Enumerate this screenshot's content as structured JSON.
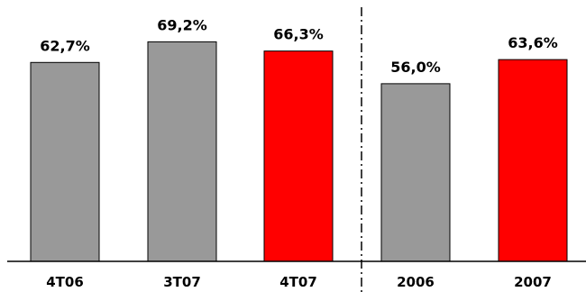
{
  "chart_data": {
    "type": "bar",
    "title": "",
    "xlabel": "",
    "ylabel": "",
    "ylim": [
      0,
      70
    ],
    "grid": false,
    "legend": "none",
    "unit": "%",
    "categories": [
      "4T06",
      "3T07",
      "4T07",
      "2006",
      "2007"
    ],
    "values": [
      62.7,
      69.2,
      66.3,
      56.0,
      63.6
    ],
    "value_labels": [
      "62,7%",
      "69,2%",
      "66,3%",
      "56,0%",
      "63,6%"
    ],
    "colors": [
      "#999999",
      "#999999",
      "#ff0000",
      "#999999",
      "#ff0000"
    ],
    "divider_after_category": "4T07"
  }
}
